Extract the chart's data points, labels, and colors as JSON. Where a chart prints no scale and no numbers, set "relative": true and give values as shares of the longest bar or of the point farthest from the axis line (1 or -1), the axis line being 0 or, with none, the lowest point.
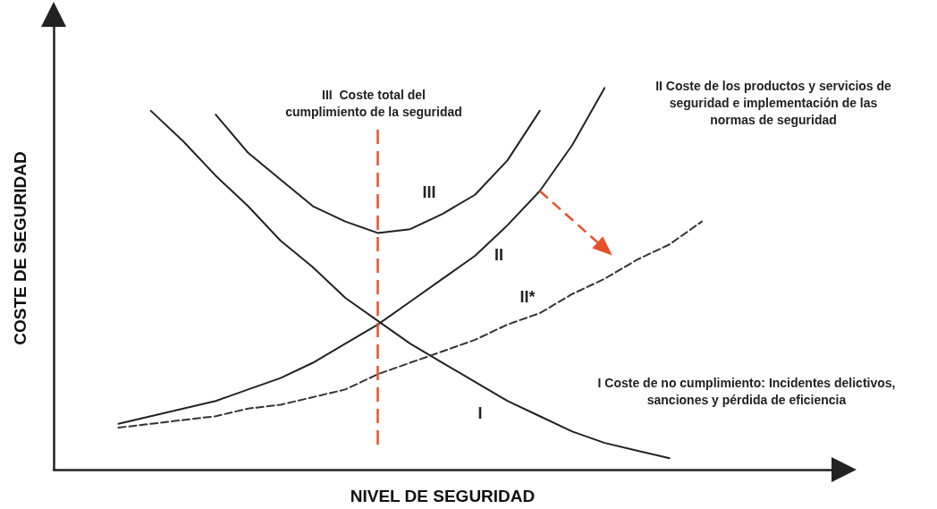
{
  "chart_data": {
    "type": "line",
    "relative": true,
    "xlabel": "NIVEL DE SEGURIDAD",
    "ylabel": "COSTE DE SEGURIDAD",
    "categories": [
      null,
      null,
      null,
      null,
      null,
      null,
      null,
      null,
      null,
      null,
      null,
      null,
      null,
      null,
      null,
      null,
      null,
      null,
      null,
      null,
      null,
      null,
      null,
      null,
      null
    ],
    "grid": false,
    "marker": "none",
    "series": [
      {
        "color": "#222222",
        "line_style": "solid",
        "values": [
          null,
          null,
          null,
          0.94,
          0.86,
          0.77,
          0.69,
          0.6,
          0.53,
          0.45,
          0.39,
          0.33,
          0.28,
          0.23,
          0.18,
          0.14,
          0.1,
          0.07,
          0.05,
          0.03,
          null,
          null,
          null,
          null,
          null
        ]
      },
      {
        "color": "#222222",
        "line_style": "solid",
        "values": [
          null,
          null,
          0.12,
          0.14,
          0.16,
          0.18,
          0.21,
          0.24,
          0.28,
          0.33,
          0.38,
          0.44,
          0.5,
          0.56,
          0.64,
          0.73,
          0.85,
          1,
          null,
          null,
          null,
          null,
          null,
          null,
          null
        ]
      },
      {
        "color": "#222222",
        "line_style": "solid",
        "values": [
          null,
          null,
          null,
          null,
          null,
          0.93,
          0.83,
          0.76,
          0.69,
          0.65,
          0.62,
          0.63,
          0.67,
          0.72,
          0.81,
          0.94,
          null,
          null,
          null,
          null,
          null,
          null,
          null,
          null,
          null
        ]
      },
      {
        "color": "#333333",
        "line_style": "dashed",
        "values": [
          null,
          null,
          0.11,
          0.12,
          0.13,
          0.14,
          0.16,
          0.17,
          0.19,
          0.21,
          0.25,
          0.28,
          0.31,
          0.34,
          0.38,
          0.41,
          0.46,
          0.5,
          0.55,
          0.59,
          0.65,
          null,
          null,
          null,
          null
        ]
      }
    ],
    "annotations": [
      "III  Coste total del\ncumplimiento de la seguridad",
      "II Coste de los productos y servicios de\nseguridad e implementación de las\nnormas de seguridad",
      "I Coste de no cumplimiento: Incidentes delictivos,\nsanciones y pérdida de eficiencia",
      "III",
      "II",
      "II*",
      "I"
    ]
  }
}
